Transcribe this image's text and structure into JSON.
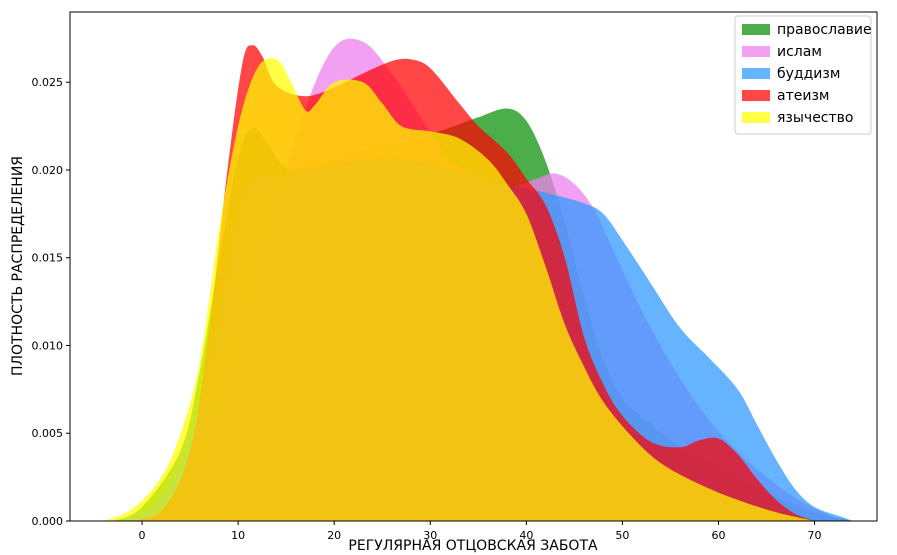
{
  "chart_data": {
    "type": "area",
    "xlabel": "РЕГУЛЯРНАЯ ОТЦОВСКАЯ ЗАБОТА",
    "ylabel": "ПЛОТНОСТЬ РАСПРЕДЕЛЕНИЯ",
    "xlim": [
      -7.5,
      76.5
    ],
    "ylim": [
      0,
      0.029
    ],
    "xticks": [
      0,
      10,
      20,
      30,
      40,
      50,
      60,
      70
    ],
    "xtick_labels": [
      "0",
      "10",
      "20",
      "30",
      "40",
      "50",
      "60",
      "70"
    ],
    "yticks": [
      0,
      0.005,
      0.01,
      0.015,
      0.02,
      0.025
    ],
    "ytick_labels": [
      "0.000",
      "0.005",
      "0.010",
      "0.015",
      "0.020",
      "0.025"
    ],
    "legend_position": "top-right",
    "grid": false,
    "series": [
      {
        "name": "православие",
        "color": "#2ca02c",
        "opacity": 0.85,
        "points": [
          [
            -3,
            0
          ],
          [
            0,
            0.0008
          ],
          [
            4,
            0.004
          ],
          [
            6,
            0.0085
          ],
          [
            8,
            0.0148
          ],
          [
            10,
            0.0207
          ],
          [
            11.5,
            0.0224
          ],
          [
            13,
            0.0216
          ],
          [
            15,
            0.0201
          ],
          [
            18,
            0.0204
          ],
          [
            20,
            0.0206
          ],
          [
            22,
            0.021
          ],
          [
            25,
            0.0213
          ],
          [
            28,
            0.0217
          ],
          [
            32,
            0.0224
          ],
          [
            35,
            0.023
          ],
          [
            38,
            0.0235
          ],
          [
            40,
            0.0228
          ],
          [
            42,
            0.0205
          ],
          [
            44,
            0.017
          ],
          [
            46,
            0.0128
          ],
          [
            48,
            0.0092
          ],
          [
            50,
            0.007
          ],
          [
            53,
            0.0055
          ],
          [
            56,
            0.0042
          ],
          [
            60,
            0.003
          ],
          [
            65,
            0.0016
          ],
          [
            70,
            0.0005
          ],
          [
            74,
            0
          ]
        ]
      },
      {
        "name": "ислам",
        "color": "#ee82ee",
        "opacity": 0.75,
        "points": [
          [
            -2,
            0
          ],
          [
            2,
            0.0005
          ],
          [
            5,
            0.002
          ],
          [
            8,
            0.006
          ],
          [
            11,
            0.012
          ],
          [
            14,
            0.018
          ],
          [
            17,
            0.0235
          ],
          [
            20,
            0.027
          ],
          [
            23,
            0.0273
          ],
          [
            26,
            0.0255
          ],
          [
            29,
            0.023
          ],
          [
            32,
            0.0206
          ],
          [
            35,
            0.0197
          ],
          [
            38,
            0.019
          ],
          [
            41,
            0.0195
          ],
          [
            43,
            0.0198
          ],
          [
            45,
            0.0192
          ],
          [
            47,
            0.0178
          ],
          [
            49,
            0.0155
          ],
          [
            52,
            0.012
          ],
          [
            55,
            0.009
          ],
          [
            58,
            0.0065
          ],
          [
            61,
            0.0045
          ],
          [
            65,
            0.0025
          ],
          [
            69,
            0.001
          ],
          [
            73,
            0
          ]
        ]
      },
      {
        "name": "буддизм",
        "color": "#3399ff",
        "opacity": 0.75,
        "points": [
          [
            -3,
            0
          ],
          [
            1,
            0.0008
          ],
          [
            4,
            0.0035
          ],
          [
            7,
            0.009
          ],
          [
            10,
            0.0175
          ],
          [
            12,
            0.0195
          ],
          [
            15,
            0.0198
          ],
          [
            18,
            0.0201
          ],
          [
            21,
            0.0204
          ],
          [
            24,
            0.0206
          ],
          [
            27,
            0.0206
          ],
          [
            30,
            0.0203
          ],
          [
            34,
            0.0198
          ],
          [
            38,
            0.0192
          ],
          [
            42,
            0.0187
          ],
          [
            46,
            0.0181
          ],
          [
            48,
            0.0175
          ],
          [
            50,
            0.016
          ],
          [
            53,
            0.0135
          ],
          [
            56,
            0.011
          ],
          [
            59,
            0.0093
          ],
          [
            62,
            0.0075
          ],
          [
            64,
            0.0055
          ],
          [
            66,
            0.0035
          ],
          [
            68,
            0.0018
          ],
          [
            70,
            0.0008
          ],
          [
            73,
            0.0002
          ],
          [
            74,
            0
          ]
        ]
      },
      {
        "name": "атеизм",
        "color": "#ff0000",
        "opacity": 0.72,
        "points": [
          [
            -2,
            0
          ],
          [
            2,
            0.0006
          ],
          [
            5,
            0.004
          ],
          [
            7,
            0.011
          ],
          [
            9,
            0.0205
          ],
          [
            10.5,
            0.0262
          ],
          [
            11.5,
            0.0271
          ],
          [
            12.5,
            0.0265
          ],
          [
            14,
            0.0248
          ],
          [
            17,
            0.0242
          ],
          [
            20,
            0.0247
          ],
          [
            23,
            0.0255
          ],
          [
            26,
            0.0262
          ],
          [
            28,
            0.0263
          ],
          [
            30,
            0.0258
          ],
          [
            33,
            0.0238
          ],
          [
            35,
            0.0225
          ],
          [
            38,
            0.021
          ],
          [
            40,
            0.0195
          ],
          [
            42,
            0.018
          ],
          [
            44,
            0.015
          ],
          [
            46,
            0.0105
          ],
          [
            48,
            0.0078
          ],
          [
            50,
            0.006
          ],
          [
            53,
            0.0045
          ],
          [
            56,
            0.0042
          ],
          [
            58,
            0.0046
          ],
          [
            60,
            0.0047
          ],
          [
            62,
            0.0038
          ],
          [
            64,
            0.0024
          ],
          [
            66,
            0.0012
          ],
          [
            68,
            0.0004
          ],
          [
            70,
            0
          ]
        ]
      },
      {
        "name": "язычество",
        "color": "#ffff00",
        "opacity": 0.72,
        "points": [
          [
            -4,
            0
          ],
          [
            -1,
            0.0007
          ],
          [
            2,
            0.0025
          ],
          [
            4,
            0.005
          ],
          [
            6,
            0.009
          ],
          [
            8,
            0.0165
          ],
          [
            10,
            0.0225
          ],
          [
            12,
            0.0258
          ],
          [
            14,
            0.0263
          ],
          [
            15.5,
            0.025
          ],
          [
            17,
            0.0234
          ],
          [
            18,
            0.0237
          ],
          [
            20,
            0.025
          ],
          [
            23,
            0.025
          ],
          [
            25,
            0.0238
          ],
          [
            27,
            0.0225
          ],
          [
            30,
            0.0222
          ],
          [
            33,
            0.0218
          ],
          [
            36,
            0.0206
          ],
          [
            38,
            0.0192
          ],
          [
            40,
            0.0175
          ],
          [
            42,
            0.0145
          ],
          [
            44,
            0.0112
          ],
          [
            46,
            0.0088
          ],
          [
            48,
            0.0068
          ],
          [
            51,
            0.0048
          ],
          [
            54,
            0.0033
          ],
          [
            58,
            0.0021
          ],
          [
            62,
            0.0012
          ],
          [
            66,
            0.0005
          ],
          [
            70,
            0
          ]
        ]
      }
    ]
  }
}
